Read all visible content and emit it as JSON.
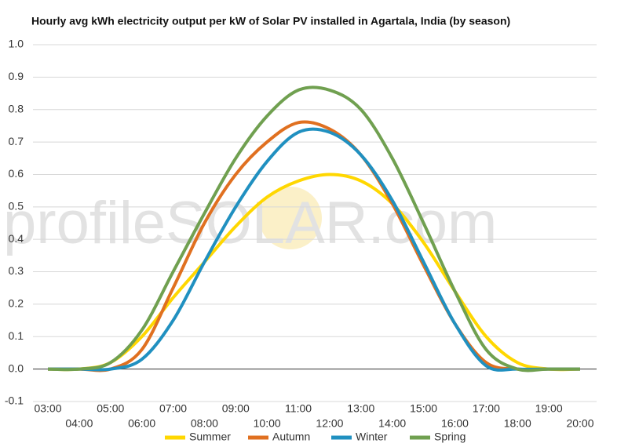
{
  "chart_data": {
    "type": "line",
    "title": "Hourly avg kWh electricity output per kW of Solar PV installed in Agartala, India (by season)",
    "watermark": "profileSOLAR.com",
    "categories": [
      "03:00",
      "04:00",
      "05:00",
      "06:00",
      "07:00",
      "08:00",
      "09:00",
      "10:00",
      "11:00",
      "12:00",
      "13:00",
      "14:00",
      "15:00",
      "16:00",
      "17:00",
      "18:00",
      "19:00",
      "20:00"
    ],
    "series": [
      {
        "name": "Summer",
        "color": "#ffd700",
        "values": [
          0,
          0,
          0.02,
          0.1,
          0.22,
          0.33,
          0.44,
          0.53,
          0.58,
          0.6,
          0.58,
          0.51,
          0.39,
          0.24,
          0.1,
          0.02,
          0,
          0
        ]
      },
      {
        "name": "Autumn",
        "color": "#e07020",
        "values": [
          0,
          0,
          0,
          0.06,
          0.25,
          0.45,
          0.6,
          0.7,
          0.76,
          0.74,
          0.66,
          0.51,
          0.32,
          0.14,
          0.02,
          0,
          0,
          0
        ]
      },
      {
        "name": "Winter",
        "color": "#2090c0",
        "values": [
          0,
          0,
          0,
          0.03,
          0.15,
          0.33,
          0.5,
          0.64,
          0.73,
          0.73,
          0.66,
          0.52,
          0.33,
          0.14,
          0.01,
          0,
          0,
          0
        ]
      },
      {
        "name": "Spring",
        "color": "#70a050",
        "values": [
          0,
          0,
          0.02,
          0.12,
          0.3,
          0.48,
          0.65,
          0.78,
          0.86,
          0.86,
          0.8,
          0.65,
          0.45,
          0.24,
          0.06,
          0,
          0,
          0
        ]
      }
    ],
    "ylim": [
      -0.1,
      1.0
    ],
    "yticks": [
      -0.1,
      {
        "value": 0,
        "label": "0.0"
      },
      0.1,
      0.2,
      0.3,
      0.4,
      0.5,
      0.6,
      0.7,
      0.8,
      0.9,
      {
        "value": 1,
        "label": "1.0"
      }
    ],
    "grid": true,
    "legend": "bottom"
  }
}
